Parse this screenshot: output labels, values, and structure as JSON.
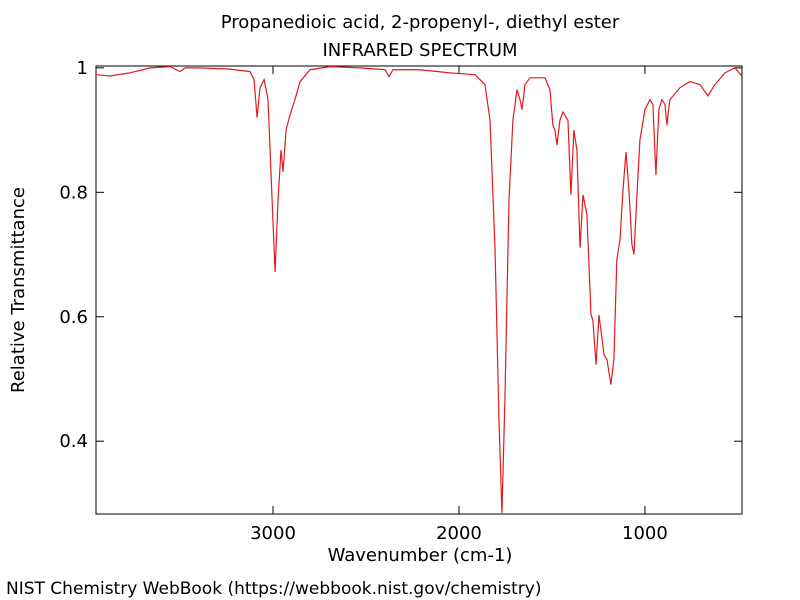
{
  "chart_data": {
    "type": "line",
    "title": "Propanedioic acid, 2-propenyl-, diethyl ester",
    "subtitle": "INFRARED SPECTRUM",
    "x_label": "Wavenumber (cm-1)",
    "y_label": "Relative Transmittance",
    "source": "NIST Chemistry WebBook (https://webbook.nist.gov/chemistry)",
    "color": "#e41a1c",
    "xlim": [
      3952,
      478
    ],
    "ylim": [
      0.283,
      1.003
    ],
    "xticks": [
      3000,
      2000,
      1000
    ],
    "yticks": [
      0.4,
      0.6,
      0.8,
      1
    ],
    "x": [
      3952,
      3876,
      3769,
      3661,
      3554,
      3500,
      3473,
      3392,
      3231,
      3124,
      3102,
      3086,
      3070,
      3048,
      3027,
      3005,
      2989,
      2973,
      2957,
      2946,
      2930,
      2909,
      2882,
      2855,
      2801,
      2694,
      2532,
      2398,
      2376,
      2355,
      2210,
      2048,
      1914,
      1860,
      1833,
      1806,
      1785,
      1769,
      1753,
      1731,
      1710,
      1688,
      1672,
      1661,
      1645,
      1618,
      1538,
      1511,
      1495,
      1484,
      1473,
      1457,
      1441,
      1414,
      1398,
      1382,
      1366,
      1349,
      1333,
      1312,
      1290,
      1280,
      1263,
      1247,
      1237,
      1220,
      1204,
      1183,
      1167,
      1151,
      1134,
      1118,
      1102,
      1086,
      1070,
      1059,
      1043,
      1027,
      1000,
      973,
      957,
      941,
      925,
      909,
      892,
      882,
      866,
      812,
      758,
      704,
      661,
      624,
      570,
      516,
      479
    ],
    "values": [
      0.989,
      0.987,
      0.992,
      1.0,
      1.002,
      0.994,
      1.0,
      1.0,
      0.998,
      0.994,
      0.981,
      0.92,
      0.968,
      0.981,
      0.949,
      0.788,
      0.672,
      0.788,
      0.868,
      0.833,
      0.9,
      0.924,
      0.949,
      0.978,
      0.997,
      1.002,
      1.0,
      0.997,
      0.986,
      0.997,
      0.997,
      0.992,
      0.989,
      0.973,
      0.916,
      0.708,
      0.435,
      0.285,
      0.467,
      0.788,
      0.916,
      0.965,
      0.949,
      0.933,
      0.973,
      0.984,
      0.984,
      0.965,
      0.908,
      0.9,
      0.876,
      0.916,
      0.929,
      0.916,
      0.796,
      0.9,
      0.868,
      0.711,
      0.796,
      0.764,
      0.603,
      0.595,
      0.523,
      0.603,
      0.579,
      0.539,
      0.531,
      0.491,
      0.531,
      0.692,
      0.724,
      0.804,
      0.865,
      0.804,
      0.716,
      0.7,
      0.796,
      0.884,
      0.933,
      0.949,
      0.941,
      0.828,
      0.933,
      0.949,
      0.941,
      0.908,
      0.949,
      0.968,
      0.978,
      0.973,
      0.955,
      0.973,
      0.992,
      1.0,
      0.987
    ]
  }
}
